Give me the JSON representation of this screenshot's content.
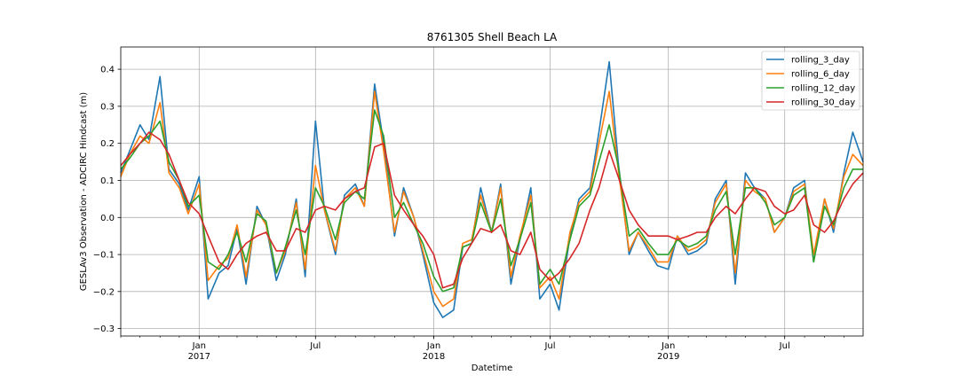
{
  "chart_data": {
    "type": "line",
    "title": "8761305 Shell Beach LA",
    "xlabel": "Datetime",
    "ylabel": "GESLAv3 Observation - ADCIRC Hindcast (m)",
    "xlim": [
      "2016-09-01",
      "2019-10-31"
    ],
    "ylim": [
      -0.32,
      0.46
    ],
    "grid": true,
    "legend_position": "top-right",
    "y_ticks": [
      {
        "value": 0.4,
        "label": "0.4"
      },
      {
        "value": 0.3,
        "label": "0.3"
      },
      {
        "value": 0.2,
        "label": "0.2"
      },
      {
        "value": 0.1,
        "label": "0.1"
      },
      {
        "value": 0.0,
        "label": "0.0"
      },
      {
        "value": -0.1,
        "label": "−0.1"
      },
      {
        "value": -0.2,
        "label": "−0.2"
      },
      {
        "value": -0.3,
        "label": "−0.3"
      }
    ],
    "x_major_ticks": [
      {
        "date": "2017-01-01",
        "label": "Jan",
        "year": "2017"
      },
      {
        "date": "2017-07-01",
        "label": "Jul",
        "year": ""
      },
      {
        "date": "2018-01-01",
        "label": "Jan",
        "year": "2018"
      },
      {
        "date": "2018-07-01",
        "label": "Jul",
        "year": ""
      },
      {
        "date": "2019-01-01",
        "label": "Jan",
        "year": "2019"
      },
      {
        "date": "2019-07-01",
        "label": "Jul",
        "year": ""
      }
    ],
    "x": [
      "2016-09-01",
      "2016-09-15",
      "2016-10-01",
      "2016-10-15",
      "2016-11-01",
      "2016-11-15",
      "2016-12-01",
      "2016-12-15",
      "2017-01-01",
      "2017-01-15",
      "2017-02-01",
      "2017-02-15",
      "2017-03-01",
      "2017-03-15",
      "2017-04-01",
      "2017-04-15",
      "2017-05-01",
      "2017-05-15",
      "2017-06-01",
      "2017-06-15",
      "2017-07-01",
      "2017-07-15",
      "2017-08-01",
      "2017-08-15",
      "2017-09-01",
      "2017-09-15",
      "2017-10-01",
      "2017-10-15",
      "2017-11-01",
      "2017-11-15",
      "2017-12-01",
      "2017-12-15",
      "2018-01-01",
      "2018-01-15",
      "2018-02-01",
      "2018-02-15",
      "2018-03-01",
      "2018-03-15",
      "2018-04-01",
      "2018-04-15",
      "2018-05-01",
      "2018-05-15",
      "2018-06-01",
      "2018-06-15",
      "2018-07-01",
      "2018-07-15",
      "2018-08-01",
      "2018-08-15",
      "2018-09-01",
      "2018-09-15",
      "2018-10-01",
      "2018-10-15",
      "2018-11-01",
      "2018-11-15",
      "2018-12-01",
      "2018-12-15",
      "2019-01-01",
      "2019-01-15",
      "2019-02-01",
      "2019-02-15",
      "2019-03-01",
      "2019-03-15",
      "2019-04-01",
      "2019-04-15",
      "2019-05-01",
      "2019-05-15",
      "2019-06-01",
      "2019-06-15",
      "2019-07-01",
      "2019-07-15",
      "2019-08-01",
      "2019-08-15",
      "2019-09-01",
      "2019-09-15",
      "2019-10-01",
      "2019-10-15",
      "2019-10-31"
    ],
    "series": [
      {
        "name": "rolling_3_day",
        "color": "#1f77b4",
        "values": [
          0.12,
          0.18,
          0.25,
          0.21,
          0.38,
          0.13,
          0.09,
          0.02,
          0.11,
          -0.22,
          -0.15,
          -0.13,
          -0.03,
          -0.18,
          0.03,
          -0.02,
          -0.17,
          -0.1,
          0.05,
          -0.16,
          0.26,
          0.02,
          -0.1,
          0.06,
          0.09,
          0.03,
          0.36,
          0.2,
          -0.05,
          0.08,
          0.0,
          -0.1,
          -0.23,
          -0.27,
          -0.25,
          -0.08,
          -0.07,
          0.08,
          -0.04,
          0.09,
          -0.18,
          -0.06,
          0.08,
          -0.22,
          -0.18,
          -0.25,
          -0.05,
          0.05,
          0.08,
          0.23,
          0.42,
          0.15,
          -0.1,
          -0.04,
          -0.09,
          -0.13,
          -0.14,
          -0.05,
          -0.1,
          -0.09,
          -0.07,
          0.05,
          0.1,
          -0.18,
          0.12,
          0.08,
          0.05,
          -0.04,
          0.0,
          0.08,
          0.1,
          -0.12,
          0.05,
          -0.04,
          0.12,
          0.23,
          0.15
        ]
      },
      {
        "name": "rolling_6_day",
        "color": "#ff7f0e",
        "values": [
          0.11,
          0.17,
          0.22,
          0.2,
          0.31,
          0.12,
          0.08,
          0.01,
          0.09,
          -0.17,
          -0.13,
          -0.11,
          -0.02,
          -0.16,
          0.02,
          -0.02,
          -0.15,
          -0.09,
          0.04,
          -0.14,
          0.14,
          0.02,
          -0.09,
          0.05,
          0.08,
          0.03,
          0.34,
          0.18,
          -0.04,
          0.07,
          0.0,
          -0.09,
          -0.2,
          -0.24,
          -0.22,
          -0.07,
          -0.06,
          0.06,
          -0.04,
          0.08,
          -0.16,
          -0.05,
          0.06,
          -0.19,
          -0.16,
          -0.22,
          -0.04,
          0.04,
          0.07,
          0.2,
          0.34,
          0.13,
          -0.09,
          -0.04,
          -0.08,
          -0.12,
          -0.12,
          -0.05,
          -0.09,
          -0.08,
          -0.06,
          0.04,
          0.09,
          -0.15,
          0.1,
          0.07,
          0.05,
          -0.04,
          0.0,
          0.07,
          0.09,
          -0.1,
          0.05,
          -0.03,
          0.11,
          0.17,
          0.14
        ]
      },
      {
        "name": "rolling_12_day",
        "color": "#2ca02c",
        "values": [
          0.13,
          0.16,
          0.2,
          0.22,
          0.26,
          0.15,
          0.1,
          0.03,
          0.06,
          -0.12,
          -0.14,
          -0.1,
          -0.04,
          -0.12,
          0.01,
          -0.01,
          -0.15,
          -0.08,
          0.02,
          -0.1,
          0.08,
          0.03,
          -0.06,
          0.04,
          0.07,
          0.05,
          0.29,
          0.22,
          0.0,
          0.04,
          -0.02,
          -0.07,
          -0.16,
          -0.2,
          -0.19,
          -0.08,
          -0.07,
          0.04,
          -0.04,
          0.05,
          -0.13,
          -0.06,
          0.04,
          -0.18,
          -0.14,
          -0.18,
          -0.06,
          0.03,
          0.06,
          0.15,
          0.25,
          0.14,
          -0.05,
          -0.03,
          -0.07,
          -0.1,
          -0.1,
          -0.06,
          -0.08,
          -0.07,
          -0.05,
          0.02,
          0.07,
          -0.1,
          0.08,
          0.08,
          0.04,
          -0.02,
          0.0,
          0.06,
          0.08,
          -0.12,
          0.03,
          -0.02,
          0.08,
          0.13,
          0.13
        ]
      },
      {
        "name": "rolling_30_day",
        "color": "#d62728",
        "values": [
          0.14,
          0.17,
          0.2,
          0.23,
          0.21,
          0.17,
          0.1,
          0.04,
          0.01,
          -0.05,
          -0.12,
          -0.14,
          -0.1,
          -0.07,
          -0.05,
          -0.04,
          -0.09,
          -0.09,
          -0.03,
          -0.04,
          0.02,
          0.03,
          0.02,
          0.05,
          0.07,
          0.08,
          0.19,
          0.2,
          0.06,
          0.02,
          -0.02,
          -0.05,
          -0.1,
          -0.19,
          -0.18,
          -0.11,
          -0.07,
          -0.03,
          -0.04,
          -0.02,
          -0.09,
          -0.1,
          -0.04,
          -0.14,
          -0.17,
          -0.15,
          -0.11,
          -0.07,
          0.02,
          0.08,
          0.18,
          0.11,
          0.02,
          -0.02,
          -0.05,
          -0.05,
          -0.05,
          -0.06,
          -0.05,
          -0.04,
          -0.04,
          0.0,
          0.03,
          0.01,
          0.05,
          0.08,
          0.07,
          0.03,
          0.01,
          0.02,
          0.06,
          -0.02,
          -0.04,
          -0.01,
          0.05,
          0.09,
          0.12
        ]
      }
    ]
  }
}
